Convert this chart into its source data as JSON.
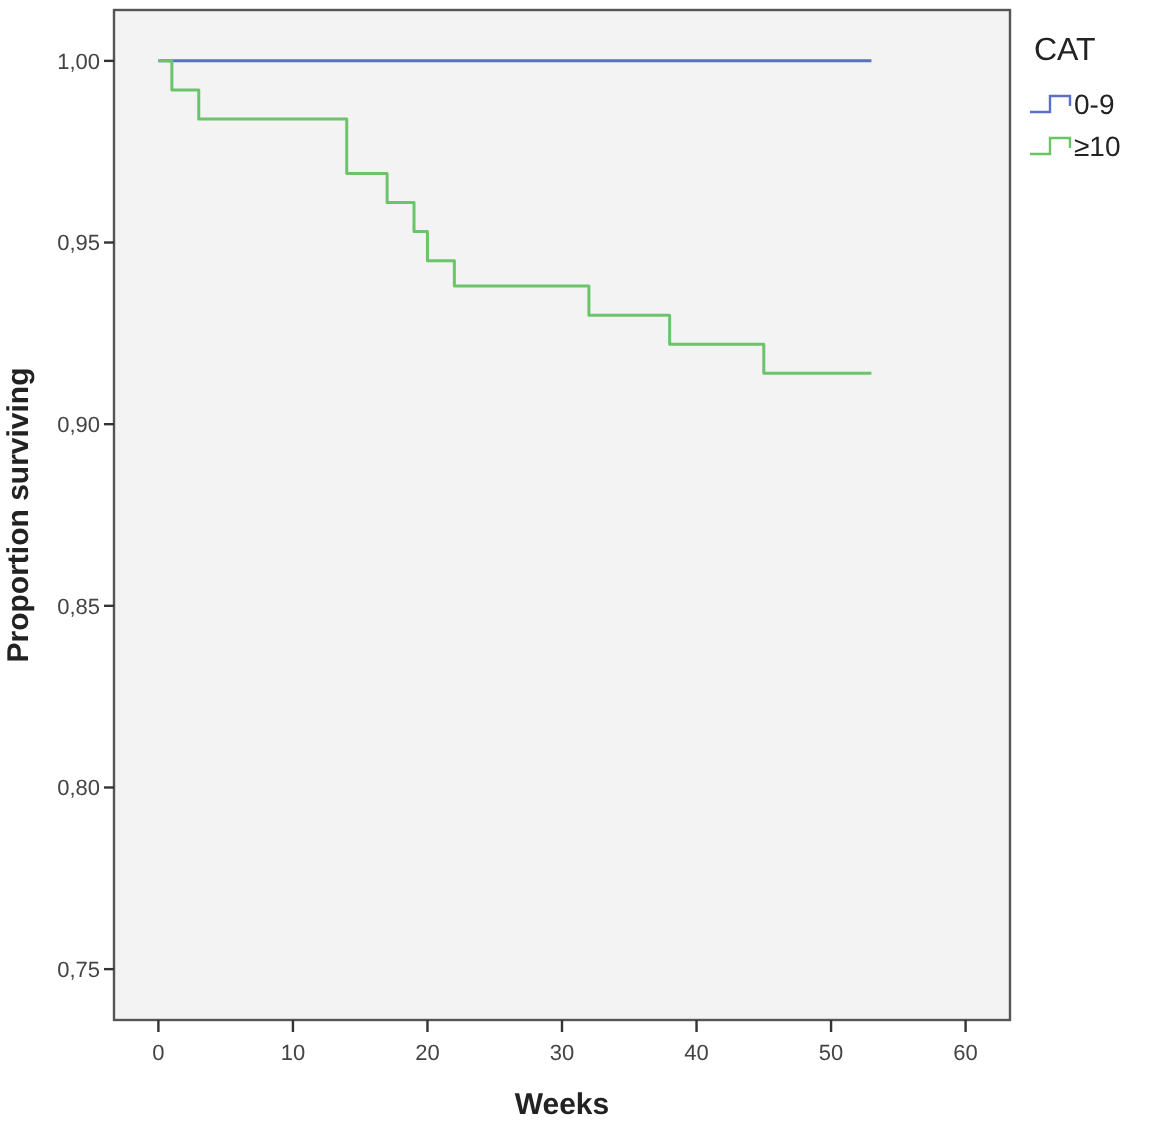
{
  "chart_data": {
    "type": "step",
    "xlabel": "Weeks",
    "ylabel": "Proportion surviving",
    "legend_title": "CAT",
    "legend": "right",
    "xlim": [
      -3.3,
      63.3
    ],
    "ylim": [
      0.736,
      1.014
    ],
    "xticks": [
      0,
      10,
      20,
      30,
      40,
      50,
      60
    ],
    "yticks": [
      {
        "value": 0.75,
        "label": "0,75"
      },
      {
        "value": 0.8,
        "label": "0,80"
      },
      {
        "value": 0.85,
        "label": "0,85"
      },
      {
        "value": 0.9,
        "label": "0,90"
      },
      {
        "value": 0.95,
        "label": "0,95"
      },
      {
        "value": 1.0,
        "label": "1,00"
      }
    ],
    "series": [
      {
        "name": "0-9",
        "color": "#5a6fcb",
        "x": [
          0,
          53
        ],
        "values": [
          1.0,
          1.0
        ]
      },
      {
        "name": "≥10",
        "color": "#6cc46a",
        "x": [
          0,
          1,
          3,
          14,
          17,
          19,
          20,
          22,
          32,
          38,
          45,
          53
        ],
        "values": [
          1.0,
          0.992,
          0.984,
          0.969,
          0.961,
          0.953,
          0.945,
          0.938,
          0.93,
          0.922,
          0.914,
          0.914
        ]
      }
    ]
  }
}
